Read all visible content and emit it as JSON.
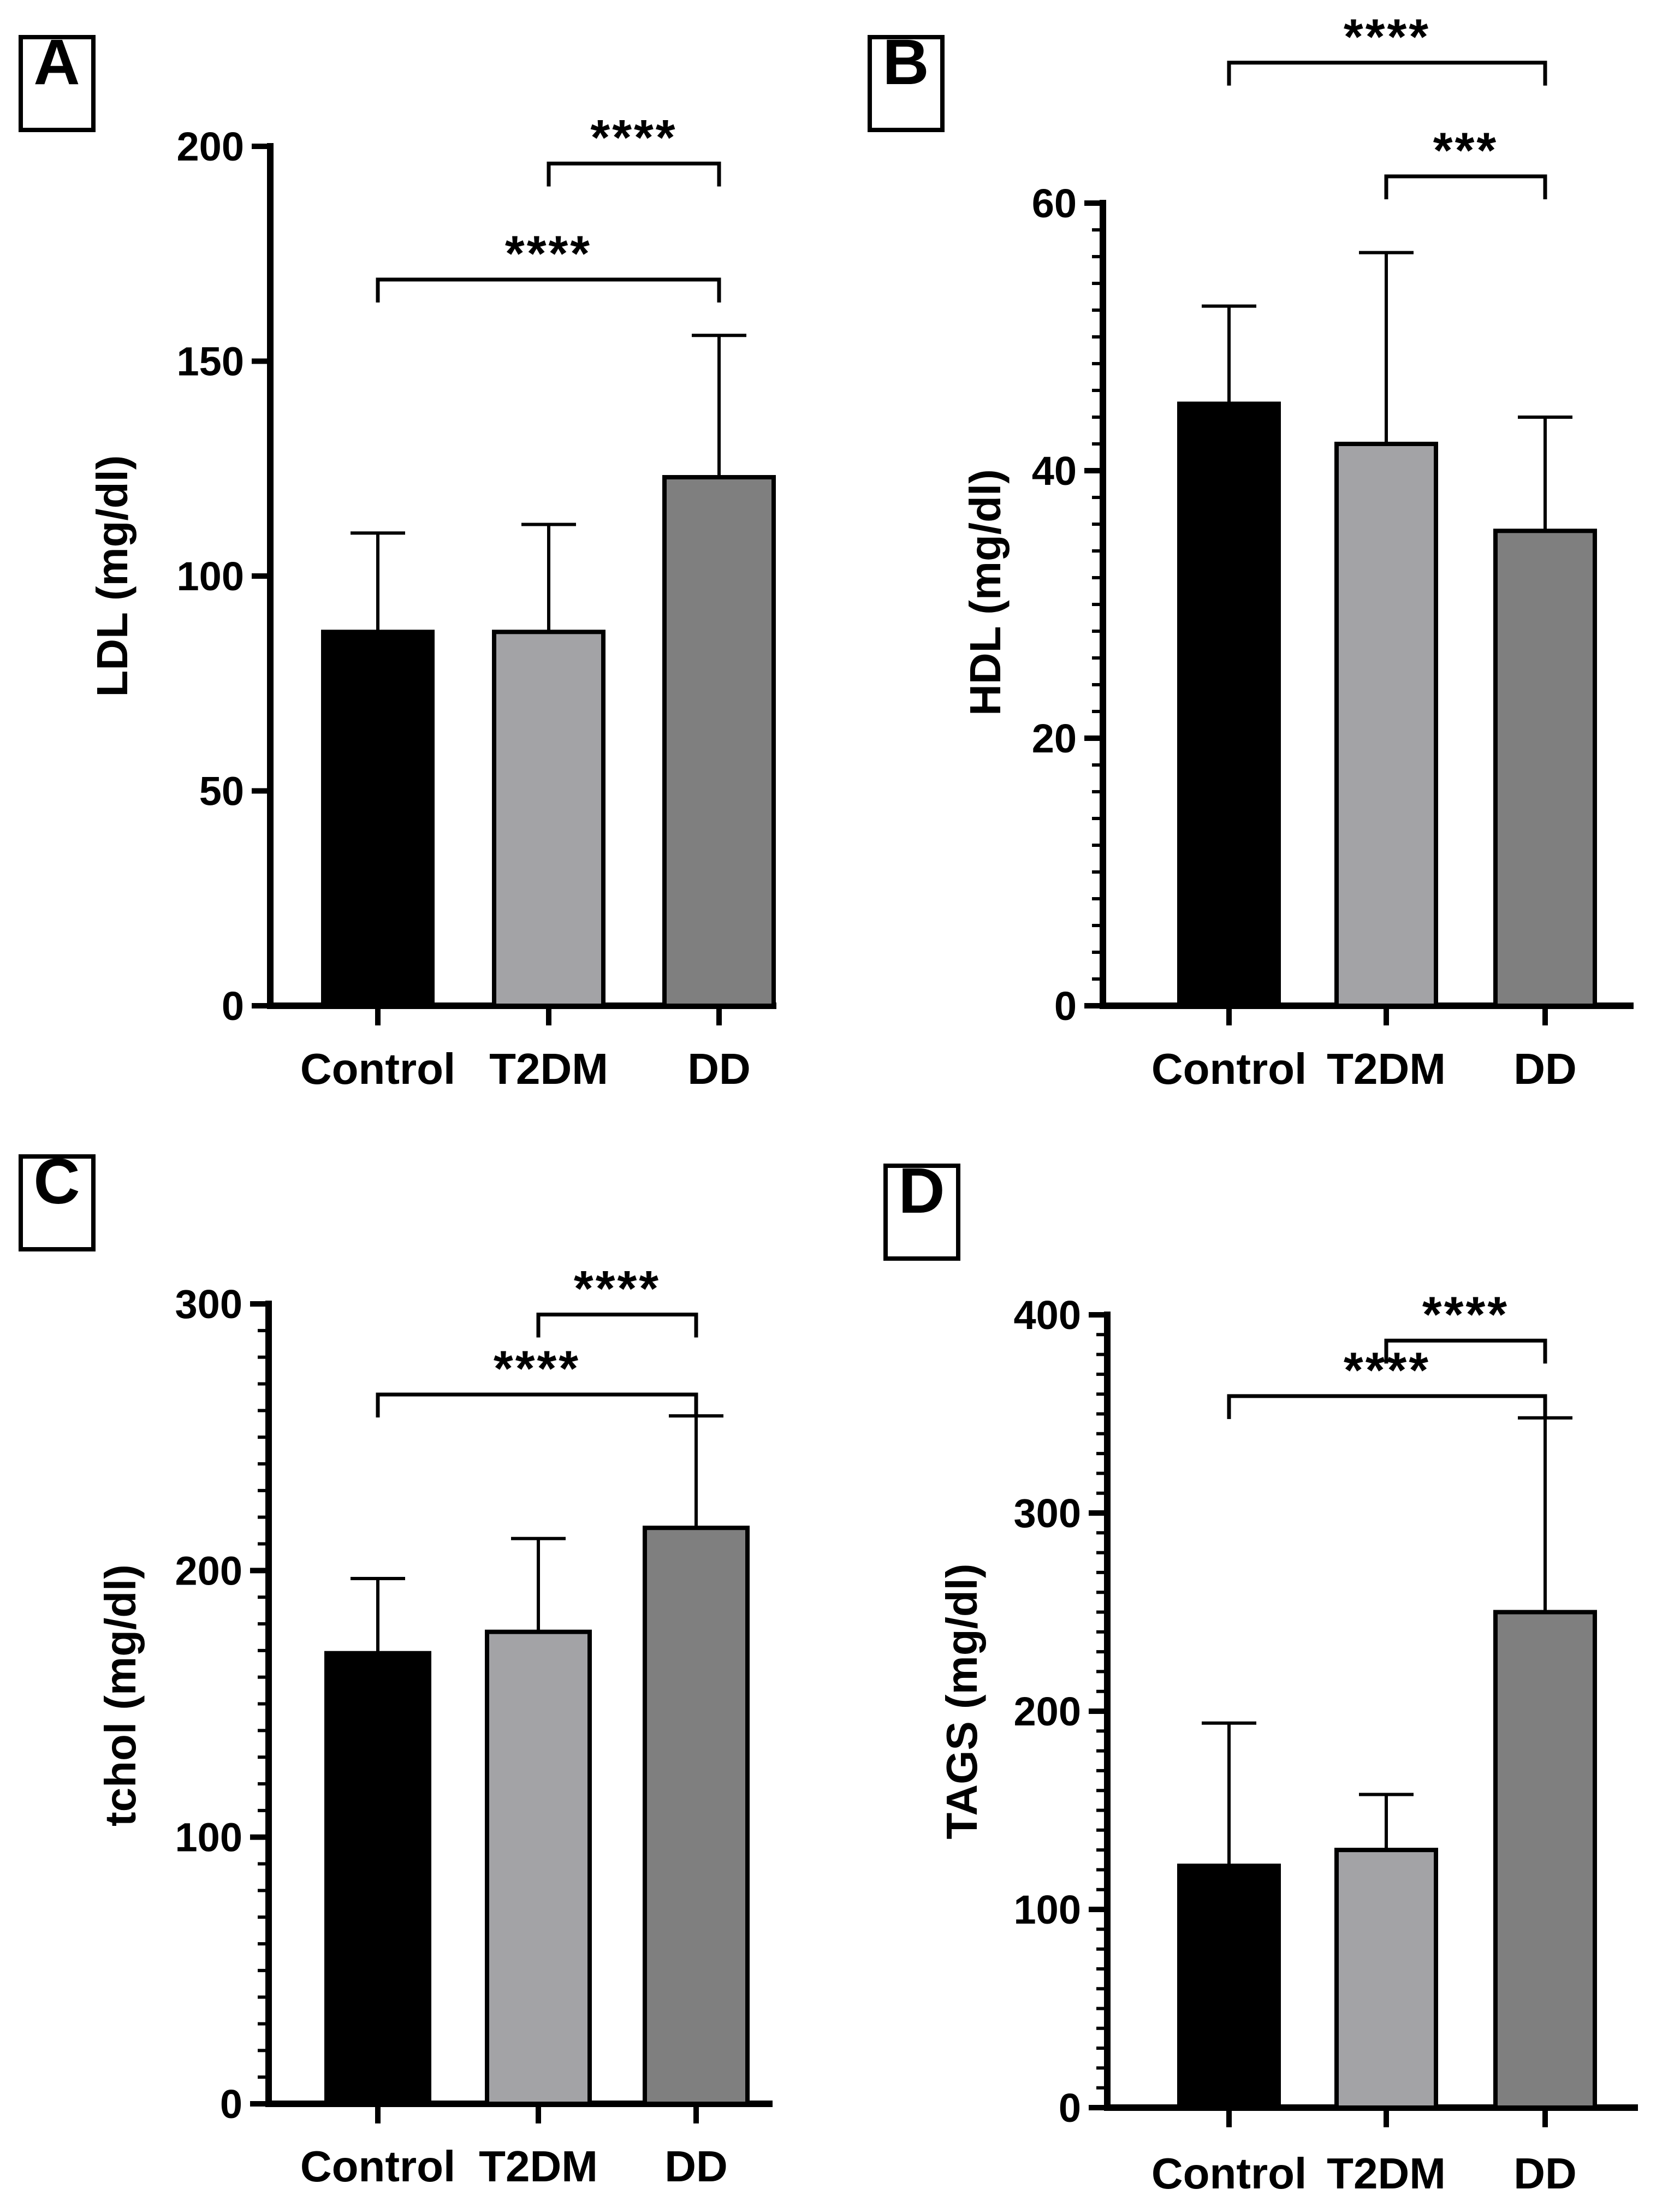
{
  "palette": {
    "control_color": "#000000",
    "t2dm_color": "#a3a3a6",
    "dd_color": "#7f7f7f"
  },
  "chart_data": [
    {
      "panel": "A",
      "type": "bar",
      "categories": [
        "Control",
        "T2DM",
        "DD"
      ],
      "values": [
        87,
        87,
        123
      ],
      "errors": [
        23,
        25,
        33
      ],
      "ylabel": "LDL (mg/dl)",
      "ylim": [
        0,
        200
      ],
      "yticks": [
        0,
        50,
        100,
        150,
        200
      ],
      "y_minor_per_major": 0,
      "grid": false,
      "significance": [
        {
          "from": "T2DM",
          "to": "DD",
          "label": "****",
          "y": 196
        },
        {
          "from": "Control",
          "to": "DD",
          "label": "****",
          "y": 169
        }
      ]
    },
    {
      "panel": "B",
      "type": "bar",
      "categories": [
        "Control",
        "T2DM",
        "DD"
      ],
      "values": [
        45,
        42,
        35.5
      ],
      "errors": [
        7.3,
        14.3,
        8.5
      ],
      "ylabel": "HDL (mg/dl)",
      "ylim": [
        0,
        60
      ],
      "yticks": [
        0,
        20,
        40,
        60
      ],
      "y_minor_per_major": 10,
      "grid": false,
      "significance": [
        {
          "from": "Control",
          "to": "DD",
          "label": "****",
          "y": 70.5
        },
        {
          "from": "T2DM",
          "to": "DD",
          "label": "***",
          "y": 62
        }
      ]
    },
    {
      "panel": "C",
      "type": "bar",
      "categories": [
        "Control",
        "T2DM",
        "DD"
      ],
      "values": [
        169,
        177,
        216
      ],
      "errors": [
        28,
        35,
        42
      ],
      "ylabel": "tchol (mg/dl)",
      "ylim": [
        0,
        300
      ],
      "yticks": [
        0,
        100,
        200,
        300
      ],
      "y_minor_per_major": 10,
      "grid": false,
      "significance": [
        {
          "from": "T2DM",
          "to": "DD",
          "label": "****",
          "y": 296
        },
        {
          "from": "Control",
          "to": "DD",
          "label": "****",
          "y": 266
        }
      ]
    },
    {
      "panel": "D",
      "type": "bar",
      "categories": [
        "Control",
        "T2DM",
        "DD"
      ],
      "values": [
        122,
        130,
        250
      ],
      "errors": [
        72,
        28,
        98
      ],
      "ylabel": "TAGS (mg/dl)",
      "ylim": [
        0,
        400
      ],
      "yticks": [
        0,
        100,
        200,
        300,
        400
      ],
      "y_minor_per_major": 10,
      "grid": false,
      "significance": [
        {
          "from": "T2DM",
          "to": "DD",
          "label": "****",
          "y": 387
        },
        {
          "from": "Control",
          "to": "DD",
          "label": "****",
          "y": 359
        }
      ]
    }
  ]
}
